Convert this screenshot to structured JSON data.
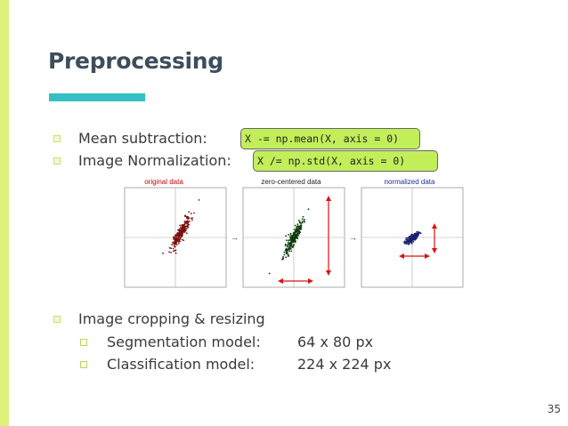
{
  "title": "Preprocessing",
  "bullets": [
    {
      "label": "Mean subtraction:",
      "code": "X -= np.mean(X, axis = 0)"
    },
    {
      "label": "Image Normalization:",
      "code": "X /= np.std(X, axis = 0)"
    }
  ],
  "figure": {
    "panels": [
      {
        "title": "original data",
        "title_color": "#c00000",
        "cloud_color": "#7a1010"
      },
      {
        "title": "zero-centered data",
        "title_color": "#222222",
        "cloud_color": "#0d3d0d"
      },
      {
        "title": "normalized data",
        "title_color": "#1a2ea0",
        "cloud_color": "#1a2470"
      }
    ],
    "arrow_color": "#dd1111"
  },
  "cropping": {
    "label": "Image cropping & resizing",
    "items": [
      {
        "name": "Segmentation model:",
        "size": "64 x 80 px"
      },
      {
        "name": "Classification model:",
        "size": "224 x 224 px"
      }
    ]
  },
  "page_number": "35",
  "colors": {
    "accent": "#36c0c4",
    "left_bar": "#ddf07a",
    "code_bg": "#c2ee5a",
    "title": "#3d4d5c"
  }
}
